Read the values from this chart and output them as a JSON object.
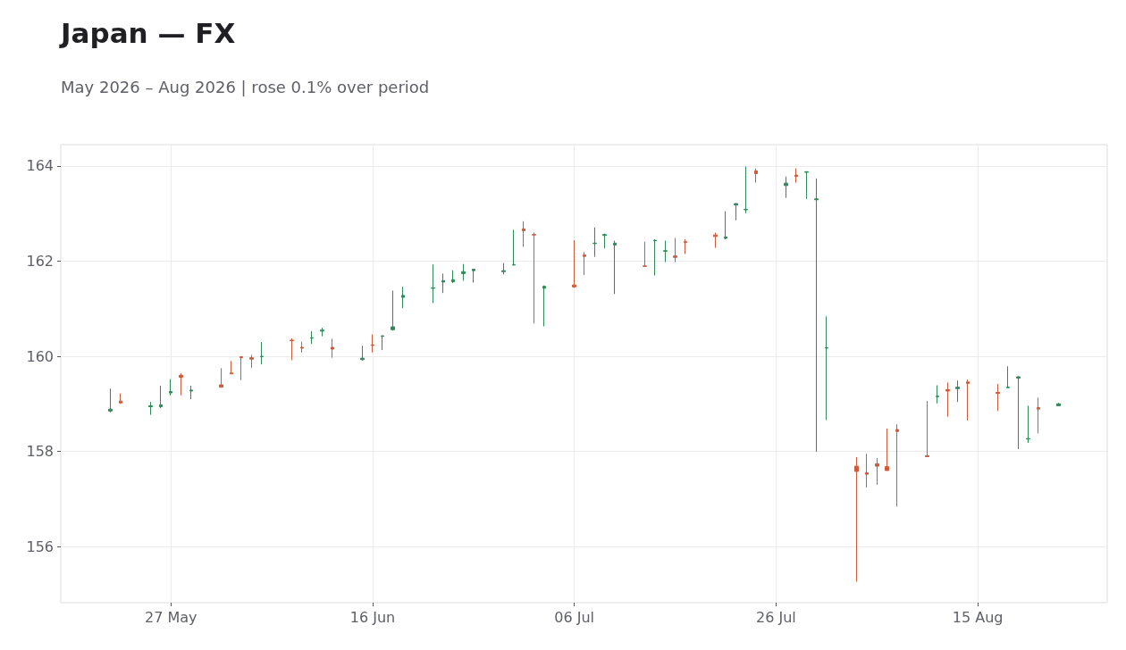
{
  "chart_data": {
    "type": "candlestick",
    "title": "Japan — FX",
    "subtitle": "May 2026 – Aug 2026 | rose 0.1% over period",
    "x": [
      "2026-05-21",
      "2026-05-22",
      "2026-05-25",
      "2026-05-26",
      "2026-05-27",
      "2026-05-28",
      "2026-05-29",
      "2026-06-01",
      "2026-06-02",
      "2026-06-03",
      "2026-06-04",
      "2026-06-05",
      "2026-06-08",
      "2026-06-09",
      "2026-06-10",
      "2026-06-11",
      "2026-06-12",
      "2026-06-15",
      "2026-06-16",
      "2026-06-17",
      "2026-06-18",
      "2026-06-19",
      "2026-06-22",
      "2026-06-23",
      "2026-06-24",
      "2026-06-25",
      "2026-06-26",
      "2026-06-29",
      "2026-06-30",
      "2026-07-01",
      "2026-07-02",
      "2026-07-03",
      "2026-07-06",
      "2026-07-07",
      "2026-07-08",
      "2026-07-09",
      "2026-07-10",
      "2026-07-13",
      "2026-07-14",
      "2026-07-15",
      "2026-07-16",
      "2026-07-17",
      "2026-07-20",
      "2026-07-21",
      "2026-07-22",
      "2026-07-23",
      "2026-07-24",
      "2026-07-27",
      "2026-07-28",
      "2026-07-29",
      "2026-07-30",
      "2026-07-31",
      "2026-08-03",
      "2026-08-04",
      "2026-08-05",
      "2026-08-06",
      "2026-08-07",
      "2026-08-10",
      "2026-08-11",
      "2026-08-12",
      "2026-08-13",
      "2026-08-14",
      "2026-08-17",
      "2026-08-18",
      "2026-08-19",
      "2026-08-20",
      "2026-08-21",
      "2026-08-23"
    ],
    "ohlc": [
      [
        158.85,
        159.32,
        158.82,
        158.89
      ],
      [
        159.06,
        159.22,
        159.0,
        159.02
      ],
      [
        158.94,
        159.04,
        158.77,
        158.96
      ],
      [
        158.94,
        159.38,
        158.91,
        158.98
      ],
      [
        159.23,
        159.52,
        159.18,
        159.26
      ],
      [
        159.6,
        159.64,
        159.18,
        159.56
      ],
      [
        159.27,
        159.38,
        159.1,
        159.29
      ],
      [
        159.4,
        159.75,
        159.34,
        159.35
      ],
      [
        159.65,
        159.9,
        159.63,
        159.63
      ],
      [
        159.99,
        159.99,
        159.5,
        159.97
      ],
      [
        159.97,
        160.03,
        159.76,
        159.94
      ],
      [
        159.99,
        160.3,
        159.83,
        160.0
      ],
      [
        160.34,
        160.38,
        159.92,
        160.33
      ],
      [
        160.19,
        160.31,
        160.08,
        160.17
      ],
      [
        160.38,
        160.53,
        160.26,
        160.39
      ],
      [
        160.53,
        160.6,
        160.42,
        160.55
      ],
      [
        160.19,
        160.37,
        159.97,
        160.15
      ],
      [
        159.93,
        160.22,
        159.91,
        159.96
      ],
      [
        160.24,
        160.46,
        160.08,
        160.23
      ],
      [
        160.42,
        160.44,
        160.13,
        160.43
      ],
      [
        160.56,
        161.38,
        160.54,
        160.62
      ],
      [
        161.24,
        161.46,
        161.01,
        161.28
      ],
      [
        161.43,
        161.93,
        161.12,
        161.44
      ],
      [
        161.56,
        161.74,
        161.33,
        161.59
      ],
      [
        161.57,
        161.81,
        161.54,
        161.61
      ],
      [
        161.74,
        161.94,
        161.59,
        161.78
      ],
      [
        161.8,
        161.84,
        161.55,
        161.83
      ],
      [
        161.78,
        161.96,
        161.72,
        161.8
      ],
      [
        161.92,
        162.66,
        161.91,
        161.93
      ],
      [
        162.68,
        162.84,
        162.3,
        162.64
      ],
      [
        162.56,
        162.6,
        160.69,
        162.55
      ],
      [
        161.43,
        161.49,
        160.63,
        161.47
      ],
      [
        161.5,
        162.44,
        161.44,
        161.46
      ],
      [
        162.13,
        162.19,
        161.71,
        162.1
      ],
      [
        162.37,
        162.71,
        162.09,
        162.38
      ],
      [
        162.54,
        162.58,
        162.27,
        162.56
      ],
      [
        162.34,
        162.43,
        161.31,
        162.38
      ],
      [
        161.9,
        162.41,
        161.88,
        161.89
      ],
      [
        162.43,
        162.46,
        161.7,
        162.44
      ],
      [
        162.21,
        162.43,
        161.98,
        162.22
      ],
      [
        162.11,
        162.49,
        161.98,
        162.08
      ],
      [
        162.41,
        162.46,
        162.15,
        162.39
      ],
      [
        162.55,
        162.6,
        162.28,
        162.52
      ],
      [
        162.48,
        163.05,
        162.46,
        162.51
      ],
      [
        163.18,
        163.22,
        162.86,
        163.21
      ],
      [
        163.08,
        163.99,
        163.01,
        163.09
      ],
      [
        163.9,
        163.95,
        163.65,
        163.84
      ],
      [
        163.59,
        163.78,
        163.33,
        163.64
      ],
      [
        163.81,
        163.95,
        163.65,
        163.78
      ],
      [
        163.87,
        163.89,
        163.31,
        163.88
      ],
      [
        163.29,
        163.74,
        157.99,
        163.31
      ],
      [
        160.17,
        160.84,
        158.66,
        160.18
      ],
      [
        157.69,
        157.88,
        155.26,
        157.58
      ],
      [
        157.55,
        157.95,
        157.24,
        157.52
      ],
      [
        157.74,
        157.86,
        157.3,
        157.69
      ],
      [
        157.68,
        158.48,
        157.59,
        157.6
      ],
      [
        158.46,
        158.57,
        156.84,
        158.42
      ],
      [
        157.91,
        159.06,
        157.88,
        157.89
      ],
      [
        159.15,
        159.39,
        159.01,
        159.16
      ],
      [
        159.3,
        159.45,
        158.73,
        159.27
      ],
      [
        159.32,
        159.49,
        159.04,
        159.35
      ],
      [
        159.46,
        159.51,
        158.65,
        159.43
      ],
      [
        159.24,
        159.42,
        158.85,
        159.22
      ],
      [
        159.34,
        159.79,
        159.33,
        159.35
      ],
      [
        159.54,
        159.58,
        158.05,
        159.57
      ],
      [
        158.26,
        158.96,
        158.18,
        158.27
      ],
      [
        158.92,
        159.13,
        158.38,
        158.89
      ],
      [
        158.96,
        159.02,
        158.96,
        159.0
      ]
    ],
    "colors": [
      "#2e8b57",
      "#cd5c3c",
      "#2e8b57",
      "#2e8b57",
      "#2e8b57",
      "#cd5c3c",
      "#2e8b57",
      "#cd5c3c",
      "#cd5c3c",
      "#cd5c3c",
      "#cd5c3c",
      "#2e8b57",
      "#cd5c3c",
      "#cd5c3c",
      "#2e8b57",
      "#2e8b57",
      "#cd5c3c",
      "#2e8b57",
      "#cd5c3c",
      "#2e8b57",
      "#2e8b57",
      "#2e8b57",
      "#2e8b57",
      "#2e8b57",
      "#2e8b57",
      "#2e8b57",
      "#2e8b57",
      "#2e8b57",
      "#2e8b57",
      "#cd5c3c",
      "#cd5c3c",
      "#2e8b57",
      "#cd5c3c",
      "#cd5c3c",
      "#2e8b57",
      "#2e8b57",
      "#2e8b57",
      "#cd5c3c",
      "#2e8b57",
      "#2e8b57",
      "#cd5c3c",
      "#cd5c3c",
      "#cd5c3c",
      "#2e8b57",
      "#2e8b57",
      "#2e8b57",
      "#cd5c3c",
      "#2e8b57",
      "#cd5c3c",
      "#2e8b57",
      "#2e8b57",
      "#2e8b57",
      "#cd5c3c",
      "#cd5c3c",
      "#cd5c3c",
      "#cd5c3c",
      "#cd5c3c",
      "#cd5c3c",
      "#2e8b57",
      "#cd5c3c",
      "#2e8b57",
      "#cd5c3c",
      "#cd5c3c",
      "#2e8b57",
      "#2e8b57",
      "#2e8b57",
      "#cd5c3c",
      "#2e8b57"
    ],
    "xlim": [
      "2026-05-16T02:00",
      "2026-08-27T20:00"
    ],
    "xticks": [
      {
        "value": "2026-05-27",
        "label": "27 May"
      },
      {
        "value": "2026-06-16",
        "label": "16 Jun"
      },
      {
        "value": "2026-07-06",
        "label": "06 Jul"
      },
      {
        "value": "2026-07-26",
        "label": "26 Jul"
      },
      {
        "value": "2026-08-15",
        "label": "15 Aug"
      }
    ],
    "ylim": [
      154.82,
      164.45
    ],
    "yticks": [
      156,
      158,
      160,
      162,
      164
    ],
    "grid": true
  }
}
